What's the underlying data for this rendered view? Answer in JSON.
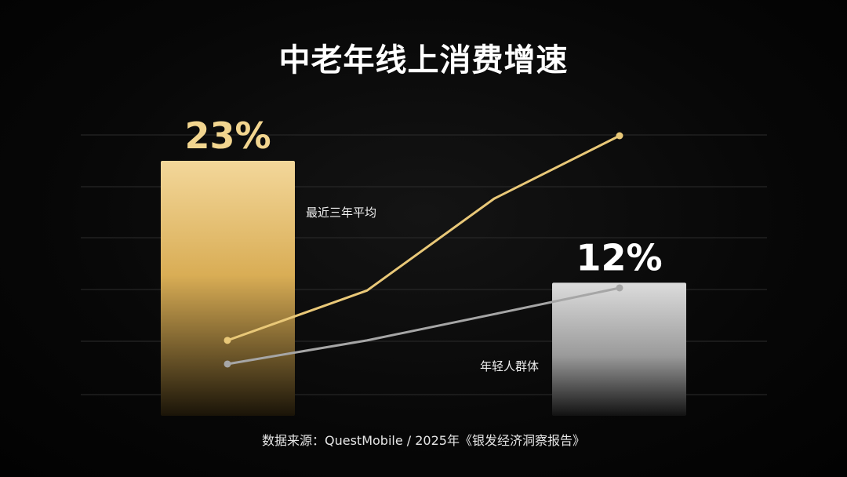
{
  "title": "中老年线上消费增速",
  "source": "数据来源：QuestMobile / 2025年《银发经济洞察报告》",
  "colors": {
    "gold": "#e9c878",
    "silver": "#a6a6a6",
    "grid": "#2c2c2c"
  },
  "chart_data": [
    {
      "type": "bar",
      "categories": [
        "",
        ""
      ],
      "values": [
        23,
        12
      ],
      "data_labels": [
        "23%",
        "12%"
      ],
      "bar_colors": [
        "gold",
        "silver"
      ],
      "ylim": [
        0,
        25
      ],
      "grid": true
    },
    {
      "type": "line",
      "x": [
        0,
        1,
        2,
        3
      ],
      "series": [
        {
          "name": "最近三年平均",
          "values": [
            1.1,
            2.05,
            3.8,
            5.0
          ],
          "color": "gold"
        },
        {
          "name": "年轻人群体",
          "values": [
            0.65,
            1.1,
            1.6,
            2.1
          ],
          "color": "silver"
        }
      ],
      "ylim": [
        0,
        5.5
      ]
    }
  ]
}
